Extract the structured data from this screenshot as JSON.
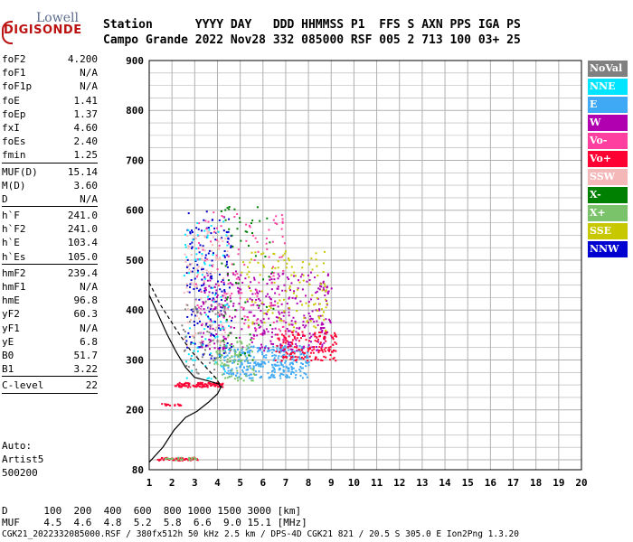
{
  "logo": {
    "top": "Lowell",
    "main": "DIGISONDE"
  },
  "header": {
    "line1": "Station      YYYY DAY   DDD HHMMSS P1  FFS S AXN PPS IGA PS",
    "line2": "Campo Grande 2022 Nov28 332 085000 RSF 005 2 713 100 03+ 25"
  },
  "params": [
    {
      "k": "foF2",
      "v": "4.200"
    },
    {
      "k": "foF1",
      "v": "N/A"
    },
    {
      "k": "foF1p",
      "v": "N/A"
    },
    {
      "k": "foE",
      "v": "1.41"
    },
    {
      "k": "foEp",
      "v": "1.37"
    },
    {
      "k": "fxI",
      "v": "4.60"
    },
    {
      "k": "foEs",
      "v": "2.40"
    },
    {
      "k": "fmin",
      "v": "1.25"
    },
    {
      "sep": true
    },
    {
      "k": "MUF(D)",
      "v": "15.14"
    },
    {
      "k": "M(D)",
      "v": "3.60"
    },
    {
      "k": "D",
      "v": "N/A"
    },
    {
      "sep": true
    },
    {
      "k": "h`F",
      "v": "241.0"
    },
    {
      "k": "h`F2",
      "v": "241.0"
    },
    {
      "k": "h`E",
      "v": "103.4"
    },
    {
      "k": "h`Es",
      "v": "105.0"
    },
    {
      "sep": true
    },
    {
      "k": "hmF2",
      "v": "239.4"
    },
    {
      "k": "hmF1",
      "v": "N/A"
    },
    {
      "k": "hmE",
      "v": "96.8"
    },
    {
      "k": "yF2",
      "v": "60.3"
    },
    {
      "k": "yF1",
      "v": "N/A"
    },
    {
      "k": "yE",
      "v": "6.8"
    },
    {
      "k": "B0",
      "v": "51.7"
    },
    {
      "k": "B1",
      "v": "3.22"
    },
    {
      "sep": true
    },
    {
      "k": "C-level",
      "v": "22"
    },
    {
      "sep": true
    }
  ],
  "auto": {
    "l1": "Auto:",
    "l2": "Artist5",
    "l3": "500200"
  },
  "legend": [
    {
      "label": "NoVal",
      "color": "#808080"
    },
    {
      "label": "NNE",
      "color": "#00e5ff"
    },
    {
      "label": "E",
      "color": "#3fa9f5"
    },
    {
      "label": "W",
      "color": "#b000b0"
    },
    {
      "label": "Vo-",
      "color": "#ff3fa0"
    },
    {
      "label": "Vo+",
      "color": "#ff0033"
    },
    {
      "label": "SSW",
      "color": "#f5b8b8"
    },
    {
      "label": "X-",
      "color": "#008000"
    },
    {
      "label": "X+",
      "color": "#7ac36a"
    },
    {
      "label": "SSE",
      "color": "#c8c800"
    },
    {
      "label": "NNW",
      "color": "#0000d0"
    }
  ],
  "bottom": {
    "d_line": "D      100  200  400  600  800 1000 1500 3000 [km]",
    "muf_line": "MUF    4.5  4.6  4.8  5.2  5.8  6.6  9.0 15.1 [MHz]",
    "file_line": "CGK21_2022332085000.RSF / 380fx512h 50 kHz 2.5 km / DPS-4D CGK21 821 / 20.5 S 305.0 E Ion2Png 1.3.20"
  },
  "chart_data": {
    "type": "scatter",
    "title": "",
    "xlabel": "",
    "ylabel": "",
    "xlim": [
      1,
      20
    ],
    "ylim": [
      80,
      900
    ],
    "x_ticks": [
      1,
      2,
      3,
      4,
      5,
      6,
      7,
      8,
      9,
      10,
      11,
      12,
      13,
      14,
      15,
      16,
      17,
      18,
      19,
      20
    ],
    "y_ticks": [
      80,
      200,
      300,
      400,
      500,
      600,
      700,
      800,
      900
    ],
    "grid": true,
    "profile_line": [
      [
        1.0,
        95
      ],
      [
        1.6,
        125
      ],
      [
        2.1,
        160
      ],
      [
        2.6,
        185
      ],
      [
        3.1,
        197
      ],
      [
        3.6,
        215
      ],
      [
        4.0,
        232
      ],
      [
        4.15,
        245
      ],
      [
        4.05,
        252
      ],
      [
        3.6,
        258
      ],
      [
        3.0,
        265
      ],
      [
        2.6,
        285
      ],
      [
        2.2,
        315
      ],
      [
        1.8,
        350
      ],
      [
        1.4,
        390
      ],
      [
        1.0,
        430
      ]
    ],
    "dashed_line": [
      [
        1.0,
        455
      ],
      [
        1.5,
        410
      ],
      [
        2.2,
        360
      ],
      [
        2.8,
        320
      ],
      [
        3.4,
        290
      ],
      [
        3.9,
        265
      ],
      [
        4.2,
        245
      ]
    ],
    "clusters": [
      {
        "name": "E",
        "color": "#3fa9f5",
        "x": [
          4.2,
          8.0
        ],
        "y": [
          265,
          330
        ],
        "n": 320
      },
      {
        "name": "W",
        "color": "#b000b0",
        "x": [
          3.2,
          9.0
        ],
        "y": [
          320,
          480
        ],
        "n": 380
      },
      {
        "name": "Vo+",
        "color": "#ff0033",
        "x": [
          6.5,
          9.2
        ],
        "y": [
          300,
          360
        ],
        "n": 160
      },
      {
        "name": "NNW",
        "color": "#0000d0",
        "x": [
          2.6,
          4.6
        ],
        "y": [
          300,
          600
        ],
        "n": 160
      },
      {
        "name": "SSW",
        "color": "#f5b8b8",
        "x": [
          2.5,
          4.5
        ],
        "y": [
          330,
          560
        ],
        "n": 120
      },
      {
        "name": "SSE",
        "color": "#c8c800",
        "x": [
          5.0,
          8.8
        ],
        "y": [
          360,
          520
        ],
        "n": 120
      },
      {
        "name": "Vo-",
        "color": "#ff3fa0",
        "x": [
          3.0,
          7.0
        ],
        "y": [
          340,
          600
        ],
        "n": 120
      },
      {
        "name": "X+",
        "color": "#7ac36a",
        "x": [
          3.8,
          5.6
        ],
        "y": [
          260,
          340
        ],
        "n": 90
      },
      {
        "name": "NNE",
        "color": "#00e5ff",
        "x": [
          2.5,
          4.5
        ],
        "y": [
          260,
          580
        ],
        "n": 80
      },
      {
        "name": "X-",
        "color": "#008000",
        "x": [
          4.0,
          6.5
        ],
        "y": [
          300,
          620
        ],
        "n": 60
      },
      {
        "name": "NoVal",
        "color": "#808080",
        "x": [
          2.4,
          4.4
        ],
        "y": [
          270,
          420
        ],
        "n": 60
      },
      {
        "name": "Es",
        "color": "#ff0033",
        "x": [
          2.1,
          4.2
        ],
        "y": [
          247,
          256
        ],
        "n": 90
      },
      {
        "name": "Es2",
        "color": "#ff0033",
        "x": [
          1.4,
          2.4
        ],
        "y": [
          210,
          214
        ],
        "n": 14
      },
      {
        "name": "E-layer",
        "color": "#ff0033",
        "x": [
          1.3,
          3.1
        ],
        "y": [
          100,
          106
        ],
        "n": 50
      },
      {
        "name": "E-layer-g",
        "color": "#7ac36a",
        "x": [
          1.6,
          3.1
        ],
        "y": [
          100,
          106
        ],
        "n": 20
      }
    ]
  }
}
